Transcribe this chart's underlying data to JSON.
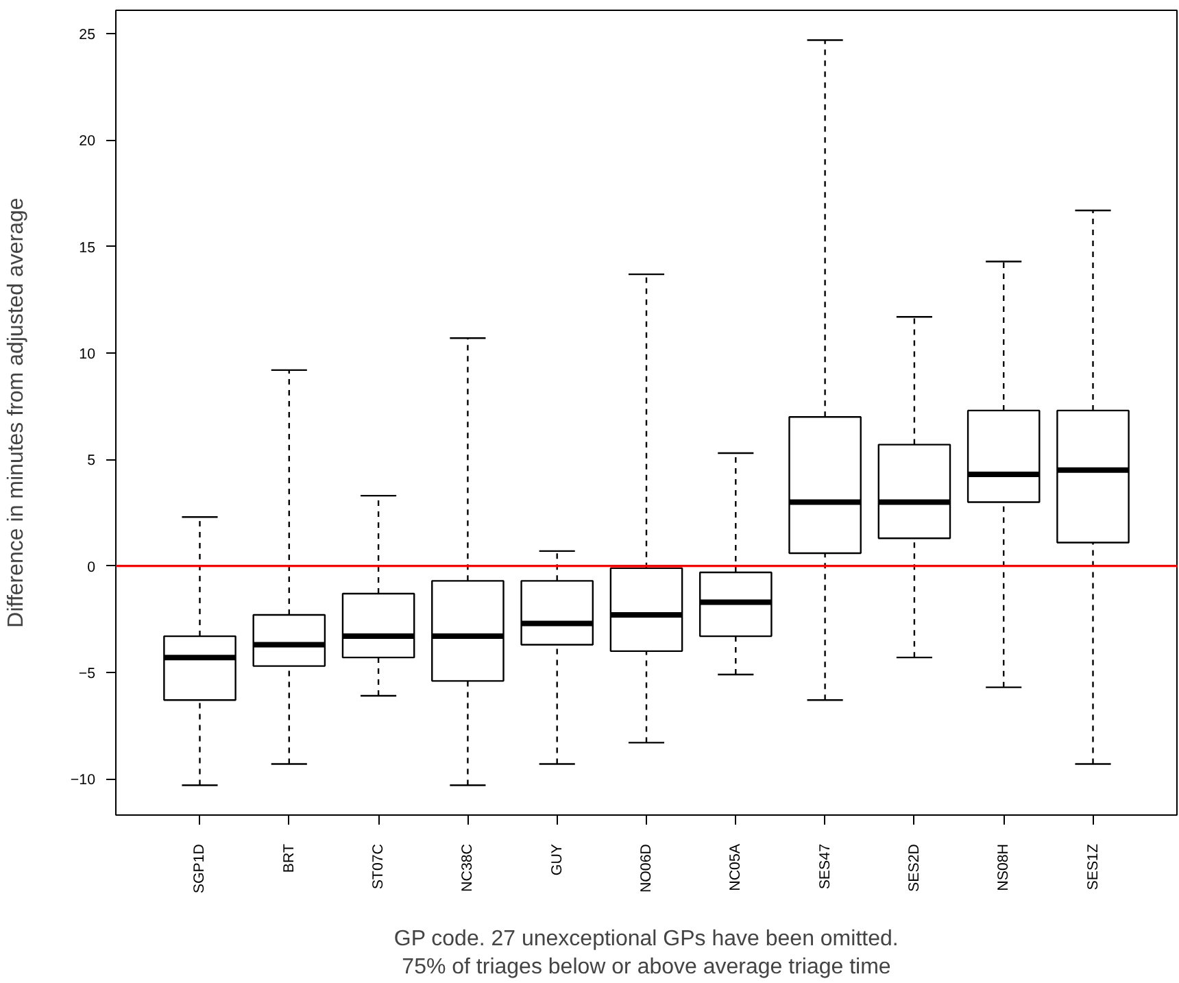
{
  "chart_data": {
    "type": "box",
    "xlabel": "GP code. 27 unexceptional GPs have been omitted.\n75% of triages below or above average triage time",
    "ylabel": "Difference in minutes from adjusted average",
    "categories": [
      "SGP1D",
      "BRT",
      "ST07C",
      "NC38C",
      "GUY",
      "NO06D",
      "NC05A",
      "SES47",
      "SES2D",
      "NS08H",
      "SES1Z"
    ],
    "boxes": [
      {
        "low": -10.3,
        "q1": -6.3,
        "median": -4.3,
        "q3": -3.3,
        "high": 2.3
      },
      {
        "low": -9.3,
        "q1": -4.7,
        "median": -3.7,
        "q3": -2.3,
        "high": 9.2
      },
      {
        "low": -6.1,
        "q1": -4.3,
        "median": -3.3,
        "q3": -1.3,
        "high": 3.3
      },
      {
        "low": -10.3,
        "q1": -5.4,
        "median": -3.3,
        "q3": -0.7,
        "high": 10.7
      },
      {
        "low": -9.3,
        "q1": -3.7,
        "median": -2.7,
        "q3": -0.7,
        "high": 0.7
      },
      {
        "low": -8.3,
        "q1": -4.0,
        "median": -2.3,
        "q3": -0.1,
        "high": 13.7
      },
      {
        "low": -5.1,
        "q1": -3.3,
        "median": -1.7,
        "q3": -0.3,
        "high": 5.3
      },
      {
        "low": -6.3,
        "q1": 0.6,
        "median": 3.0,
        "q3": 7.0,
        "high": 24.7
      },
      {
        "low": -4.3,
        "q1": 1.3,
        "median": 3.0,
        "q3": 5.7,
        "high": 11.7
      },
      {
        "low": -5.7,
        "q1": 3.0,
        "median": 4.3,
        "q3": 7.3,
        "high": 14.3
      },
      {
        "low": -9.3,
        "q1": 1.1,
        "median": 4.5,
        "q3": 7.3,
        "high": 16.7
      }
    ],
    "ylim": [
      -11.7,
      26.1
    ],
    "yticks": [
      -10,
      -5,
      0,
      5,
      10,
      15,
      20,
      25
    ],
    "ref_lines": [
      {
        "axis": "y",
        "value": 0,
        "color": "#ff0000"
      }
    ],
    "grid": false
  }
}
